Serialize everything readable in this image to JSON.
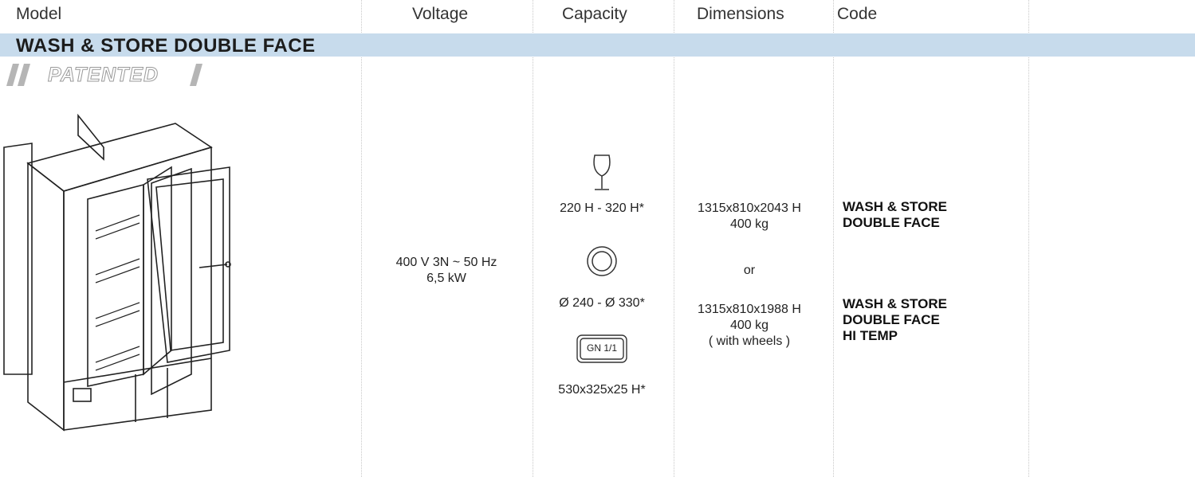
{
  "header": {
    "columns": [
      "Model",
      "Voltage",
      "Capacity",
      "Dimensions",
      "Code"
    ]
  },
  "section": {
    "title": "WASH & STORE DOUBLE FACE",
    "badge": "PATENTED"
  },
  "voltage": [
    "400 V 3N ~ 50 Hz",
    "6,5 kW"
  ],
  "capacity": {
    "glass": "220 H - 320 H*",
    "plate": "Ø 240 - Ø 330*",
    "tray_icon": "GN 1/1",
    "tray": "530x325x25 H*"
  },
  "dimensions": [
    "1315x810x2043 H",
    "400 kg",
    "or",
    "1315x810x1988 H",
    "400 kg",
    "( with wheels )"
  ],
  "codes": [
    [
      "WASH & STORE",
      "DOUBLE FACE"
    ],
    [
      "WASH & STORE",
      "DOUBLE FACE",
      "HI TEMP"
    ]
  ]
}
